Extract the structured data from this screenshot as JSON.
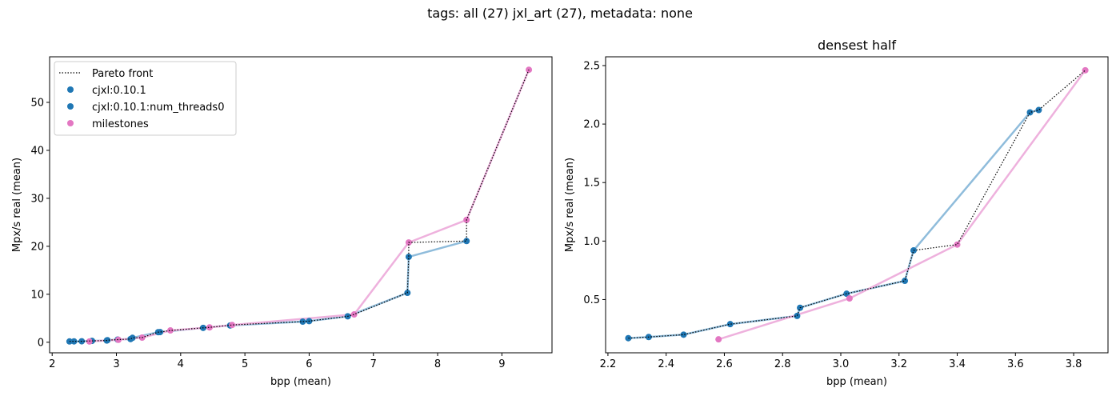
{
  "figure": {
    "suptitle": "tags: all (27) jxl_art (27), metadata: none"
  },
  "colors": {
    "cjxl": "#1f77b4",
    "cjxl_line": "#8fbcdb",
    "milestones": "#e377c2",
    "milestones_line": "#eeb1dd",
    "pareto": "#000000"
  },
  "chart_data": [
    {
      "type": "scatter",
      "title": "",
      "xlabel": "bpp (mean)",
      "ylabel": "Mpx/s real (mean)",
      "xlim": [
        1.96,
        9.78
      ],
      "ylim": [
        -2.2,
        59.5
      ],
      "xticks": [
        2,
        3,
        4,
        5,
        6,
        7,
        8,
        9
      ],
      "yticks": [
        0,
        10,
        20,
        30,
        40,
        50
      ],
      "legend": {
        "position": "top-left",
        "entries": [
          {
            "label": "Pareto front",
            "kind": "dotted-line",
            "color": "#000000"
          },
          {
            "label": "cjxl:0.10.1",
            "kind": "marker",
            "color": "#1f77b4"
          },
          {
            "label": "cjxl:0.10.1:num_threads0",
            "kind": "marker",
            "color": "#1f77b4"
          },
          {
            "label": "milestones",
            "kind": "marker",
            "color": "#e377c2"
          }
        ]
      },
      "series": [
        {
          "name": "cjxl:0.10.1",
          "color": "#1f77b4",
          "points": [
            [
              2.27,
              0.17
            ],
            [
              2.34,
              0.18
            ],
            [
              2.46,
              0.2
            ],
            [
              2.62,
              0.29
            ],
            [
              2.85,
              0.36
            ],
            [
              2.86,
              0.43
            ],
            [
              3.02,
              0.55
            ],
            [
              3.22,
              0.66
            ],
            [
              3.25,
              0.92
            ],
            [
              3.65,
              2.1
            ],
            [
              3.68,
              2.12
            ],
            [
              4.35,
              3.0
            ],
            [
              4.77,
              3.5
            ],
            [
              5.9,
              4.3
            ],
            [
              6.0,
              4.4
            ],
            [
              6.6,
              5.4
            ],
            [
              7.53,
              10.3
            ],
            [
              7.55,
              17.8
            ],
            [
              8.45,
              21.1
            ]
          ]
        },
        {
          "name": "cjxl:0.10.1:num_threads0",
          "color": "#1f77b4",
          "points": [
            [
              2.27,
              0.17
            ],
            [
              2.34,
              0.18
            ],
            [
              2.46,
              0.2
            ],
            [
              2.62,
              0.29
            ],
            [
              2.85,
              0.36
            ],
            [
              2.86,
              0.43
            ],
            [
              3.02,
              0.55
            ],
            [
              3.22,
              0.66
            ],
            [
              3.25,
              0.92
            ],
            [
              3.65,
              2.1
            ],
            [
              3.68,
              2.12
            ],
            [
              4.35,
              3.0
            ],
            [
              4.77,
              3.5
            ],
            [
              5.9,
              4.3
            ],
            [
              6.0,
              4.4
            ],
            [
              6.6,
              5.4
            ],
            [
              7.53,
              10.3
            ],
            [
              7.55,
              17.8
            ],
            [
              8.45,
              21.1
            ]
          ]
        },
        {
          "name": "milestones",
          "color": "#e377c2",
          "points": [
            [
              2.58,
              0.16
            ],
            [
              3.03,
              0.51
            ],
            [
              3.4,
              0.97
            ],
            [
              3.84,
              2.46
            ],
            [
              4.45,
              3.1
            ],
            [
              4.8,
              3.6
            ],
            [
              6.7,
              5.8
            ],
            [
              7.55,
              20.8
            ],
            [
              8.45,
              25.5
            ],
            [
              9.42,
              56.8
            ]
          ]
        },
        {
          "name": "Pareto front",
          "color": "#000000",
          "points": [
            [
              2.27,
              0.17
            ],
            [
              2.34,
              0.18
            ],
            [
              2.46,
              0.2
            ],
            [
              2.62,
              0.29
            ],
            [
              2.85,
              0.36
            ],
            [
              2.86,
              0.43
            ],
            [
              3.02,
              0.55
            ],
            [
              3.22,
              0.66
            ],
            [
              3.25,
              0.92
            ],
            [
              3.4,
              0.97
            ],
            [
              3.65,
              2.1
            ],
            [
              3.68,
              2.12
            ],
            [
              3.84,
              2.46
            ],
            [
              4.35,
              3.0
            ],
            [
              4.45,
              3.1
            ],
            [
              4.8,
              3.6
            ],
            [
              5.9,
              4.3
            ],
            [
              6.0,
              4.4
            ],
            [
              6.6,
              5.4
            ],
            [
              6.7,
              5.8
            ],
            [
              7.53,
              10.3
            ],
            [
              7.55,
              17.8
            ],
            [
              7.55,
              20.8
            ],
            [
              8.45,
              21.1
            ],
            [
              8.45,
              25.5
            ],
            [
              9.42,
              56.8
            ]
          ]
        }
      ]
    },
    {
      "type": "scatter",
      "title": "densest half",
      "xlabel": "bpp (mean)",
      "ylabel": "Mpx/s real (mean)",
      "xlim": [
        2.192,
        3.918
      ],
      "ylim": [
        0.045,
        2.575
      ],
      "xticks": [
        2.2,
        2.4,
        2.6,
        2.8,
        3.0,
        3.2,
        3.4,
        3.6,
        3.8
      ],
      "yticks": [
        0.5,
        1.0,
        1.5,
        2.0,
        2.5
      ],
      "series": [
        {
          "name": "cjxl:0.10.1",
          "color": "#1f77b4",
          "points": [
            [
              2.27,
              0.17
            ],
            [
              2.34,
              0.18
            ],
            [
              2.46,
              0.2
            ],
            [
              2.62,
              0.29
            ],
            [
              2.85,
              0.36
            ],
            [
              2.86,
              0.43
            ],
            [
              3.02,
              0.55
            ],
            [
              3.22,
              0.66
            ],
            [
              3.25,
              0.92
            ],
            [
              3.65,
              2.1
            ],
            [
              3.68,
              2.12
            ]
          ]
        },
        {
          "name": "milestones",
          "color": "#e377c2",
          "points": [
            [
              2.58,
              0.16
            ],
            [
              3.03,
              0.51
            ],
            [
              3.4,
              0.97
            ],
            [
              3.84,
              2.46
            ]
          ]
        },
        {
          "name": "Pareto front",
          "color": "#000000",
          "points": [
            [
              2.27,
              0.17
            ],
            [
              2.34,
              0.18
            ],
            [
              2.46,
              0.2
            ],
            [
              2.62,
              0.29
            ],
            [
              2.85,
              0.36
            ],
            [
              2.86,
              0.43
            ],
            [
              3.02,
              0.55
            ],
            [
              3.22,
              0.66
            ],
            [
              3.25,
              0.92
            ],
            [
              3.4,
              0.97
            ],
            [
              3.65,
              2.1
            ],
            [
              3.68,
              2.12
            ],
            [
              3.84,
              2.46
            ]
          ]
        }
      ]
    }
  ]
}
